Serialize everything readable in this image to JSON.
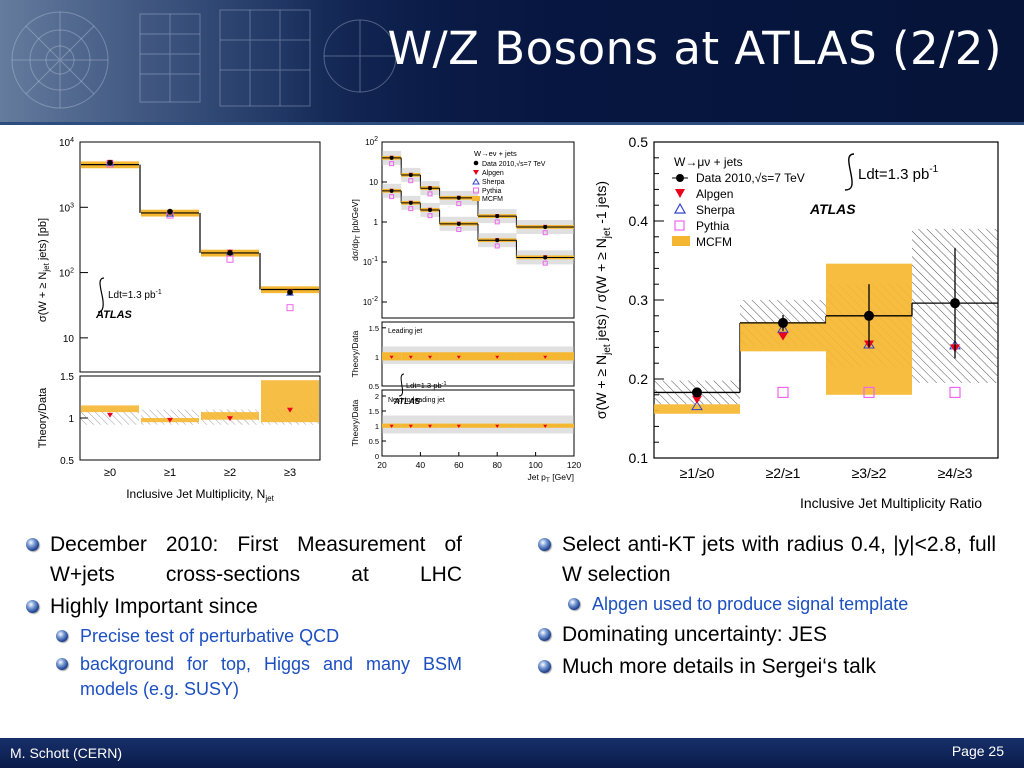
{
  "slide": {
    "title": "W/Z Bosons at ATLAS (2/2)",
    "author": "M. Schott (CERN)",
    "page": "Page 25"
  },
  "left_bullets": [
    {
      "level": 1,
      "text": "December 2010: First Measurement of W+jets cross-sections at LHC"
    },
    {
      "level": 1,
      "text": "Highly Important since"
    },
    {
      "level": 2,
      "text": "Precise test of perturbative QCD"
    },
    {
      "level": 2,
      "text": "background for top, Higgs and many BSM models (e.g. SUSY)"
    }
  ],
  "right_bullets": [
    {
      "level": 1,
      "text": "Select anti-KT jets with radius 0.4, |y|<2.8, full W selection"
    },
    {
      "level": 2,
      "text": "Alpgen used to produce signal template"
    },
    {
      "level": 1,
      "text": "Dominating uncertainty: JES"
    },
    {
      "level": 1,
      "text": "Much more details in Sergei‘s talk"
    }
  ],
  "colors": {
    "data": "#000000",
    "alpgen": "#e8001c",
    "sherpa": "#3344cc",
    "pythia": "#ee66ee",
    "mcfm": "#f5b731",
    "background": "#0a1b4a"
  },
  "chart_data": [
    {
      "type": "bar",
      "yscale": "log",
      "ylabel": "σ(W + ≥ N",
      "ylabel_sub": "jet",
      "ylabel_tail": " jets) [pb]",
      "xlabel": "Inclusive Jet Multiplicity, N",
      "xlabel_sub": "jet",
      "categories": [
        "≥0",
        "≥1",
        "≥2",
        "≥3"
      ],
      "ylim": [
        3,
        10000
      ],
      "ytick_labels": [
        "10",
        "10",
        "10",
        "10"
      ],
      "ytick_exponents": [
        "",
        "2",
        "3",
        "4"
      ],
      "lumi_label": "Ldt=1.3 pb",
      "lumi_exp": "-1",
      "atlas_label": "ATLAS",
      "series": [
        {
          "name": "Data",
          "values": [
            4800,
            860,
            200,
            50
          ]
        },
        {
          "name": "Alpgen",
          "values": [
            5000,
            830,
            210,
            52
          ]
        },
        {
          "name": "Sherpa",
          "values": [
            4700,
            780,
            200,
            48
          ]
        },
        {
          "name": "Pythia",
          "values": [
            4600,
            760,
            160,
            29
          ]
        },
        {
          "name": "MCFM",
          "values": [
            4500,
            820,
            200,
            55
          ]
        }
      ],
      "ratio": {
        "ylabel": "Theory/Data",
        "ylim": [
          0.5,
          1.5
        ],
        "ytick_labels": [
          "0.5",
          "1",
          "1.5"
        ],
        "alpgen": [
          1.04,
          0.98,
          1.0,
          1.1
        ],
        "mcfm_band": [
          [
            1.07,
            1.15
          ],
          [
            0.95,
            1.0
          ],
          [
            0.98,
            1.07
          ],
          [
            0.95,
            1.45
          ]
        ]
      }
    },
    {
      "type": "line",
      "yscale": "log",
      "ylabel": "dσ/dp",
      "ylabel_sub": "T",
      "ylabel_tail": " [pb/GeV]",
      "xlabel": "Jet p",
      "xlabel_sub": "T",
      "xlabel_tail": " [GeV]",
      "legend_title": "W→eν + jets",
      "legend": [
        "Data 2010,√s=7 TeV",
        "Alpgen",
        "Sherpa",
        "Pythia",
        "MCFM"
      ],
      "xlim": [
        20,
        120
      ],
      "xtick_labels": [
        "20",
        "40",
        "60",
        "80",
        "100",
        "120"
      ],
      "ytick_labels": [
        "10",
        "10",
        "1",
        "10",
        "10"
      ],
      "ytick_exponents": [
        "2",
        "",
        "",
        "-1",
        "-2"
      ],
      "lumi_label": "Ldt=1.3 pb",
      "lumi_exp": "-1",
      "atlas_label": "ATLAS",
      "series": [
        {
          "name": "Leading jet",
          "x": [
            25,
            35,
            45,
            60,
            80,
            105
          ],
          "values": [
            40,
            15,
            7,
            4,
            1.4,
            0.75
          ]
        },
        {
          "name": "Next-to-leading jet",
          "x": [
            25,
            35,
            45,
            60,
            80,
            105
          ],
          "values": [
            6,
            3,
            2,
            0.9,
            0.35,
            0.13
          ]
        }
      ],
      "ratio_panels": [
        {
          "label": "Leading jet",
          "ylabel": "Theory/Data",
          "ytick_labels": [
            "0.5",
            "1",
            "1.5"
          ]
        },
        {
          "label": "Next-to-leading jet",
          "ylabel": "Theory/Data",
          "ytick_labels": [
            "0",
            "0.5",
            "1",
            "1.5",
            "2"
          ]
        }
      ]
    },
    {
      "type": "bar",
      "ylabel": "σ(W + ≥ N",
      "ylabel_sub": "jet",
      "ylabel_tail": " jets) / σ(W + ≥ N",
      "ylabel_sub2": "jet",
      "ylabel_tail2": " -1 jets)",
      "xlabel": "Inclusive Jet Multiplicity Ratio",
      "categories": [
        "≥1/≥0",
        "≥2/≥1",
        "≥3/≥2",
        "≥4/≥3"
      ],
      "ylim": [
        0.1,
        0.5
      ],
      "ytick_labels": [
        "0.1",
        "0.2",
        "0.3",
        "0.4",
        "0.5"
      ],
      "legend_title": "W→μν + jets",
      "legend": [
        "Data 2010,√s=7 TeV",
        "Alpgen",
        "Sherpa",
        "Pythia",
        "MCFM"
      ],
      "lumi_label": "Ldt=1.3 pb",
      "lumi_exp": "-1",
      "atlas_label": "ATLAS",
      "series": [
        {
          "name": "Data",
          "values": [
            0.183,
            0.271,
            0.28,
            0.296
          ],
          "err": [
            0.005,
            0.01,
            0.04,
            0.07
          ]
        },
        {
          "name": "Alpgen",
          "values": [
            0.175,
            0.255,
            0.245,
            0.24
          ]
        },
        {
          "name": "Sherpa",
          "values": [
            0.165,
            0.263,
            0.243,
            0.242
          ]
        },
        {
          "name": "Pythia",
          "values": [
            null,
            0.183,
            0.183,
            0.183
          ]
        },
        {
          "name": "MCFM",
          "band": [
            [
              0.156,
              0.168
            ],
            [
              0.235,
              0.272
            ],
            [
              0.18,
              0.346
            ],
            null
          ]
        }
      ],
      "syst_band": [
        [
          0.168,
          0.198
        ],
        [
          0.242,
          0.3
        ],
        [
          0.215,
          0.32
        ],
        [
          0.195,
          0.39
        ]
      ]
    }
  ]
}
